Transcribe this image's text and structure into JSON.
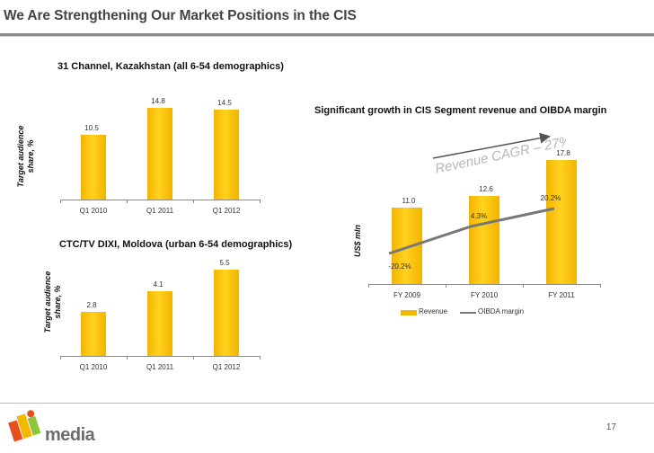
{
  "slide": {
    "title": "We Are Strengthening Our Market Positions in the CIS",
    "page_number": "17",
    "brand": "media"
  },
  "colors": {
    "bar": "#f5b800",
    "line": "#777777",
    "rule": "#8a8a8a"
  },
  "chart_data": [
    {
      "type": "bar",
      "title": "31 Channel, Kazakhstan (all 6-54 demographics)",
      "ylabel": "Target audience share, %",
      "categories": [
        "Q1 2010",
        "Q1 2011",
        "Q1 2012"
      ],
      "values": [
        10.5,
        14.8,
        14.5
      ],
      "value_labels": [
        "10.5",
        "14.8",
        "14.5"
      ]
    },
    {
      "type": "bar",
      "title": "CTC/TV DIXI, Moldova (urban 6-54 demographics)",
      "ylabel": "Target audience share, %",
      "categories": [
        "Q1 2010",
        "Q1 2011",
        "Q1 2012"
      ],
      "values": [
        2.8,
        4.1,
        5.5
      ],
      "value_labels": [
        "2.8",
        "4.1",
        "5.5"
      ]
    },
    {
      "type": "bar+line",
      "title": "Significant growth in CIS Segment revenue and OIBDA margin",
      "ylabel": "US$ mln",
      "categories": [
        "FY 2009",
        "FY 2010",
        "FY 2011"
      ],
      "series": [
        {
          "name": "Revenue",
          "values": [
            11.0,
            12.6,
            17.8
          ],
          "labels": [
            "11.0",
            "12.6",
            "17.8"
          ]
        },
        {
          "name": "OIBDA margin",
          "values": [
            -20.2,
            4.3,
            20.2
          ],
          "labels": [
            "-20.2%",
            "4.3%",
            "20.2%"
          ]
        }
      ],
      "annotation": "Revenue CAGR – 27%"
    }
  ]
}
